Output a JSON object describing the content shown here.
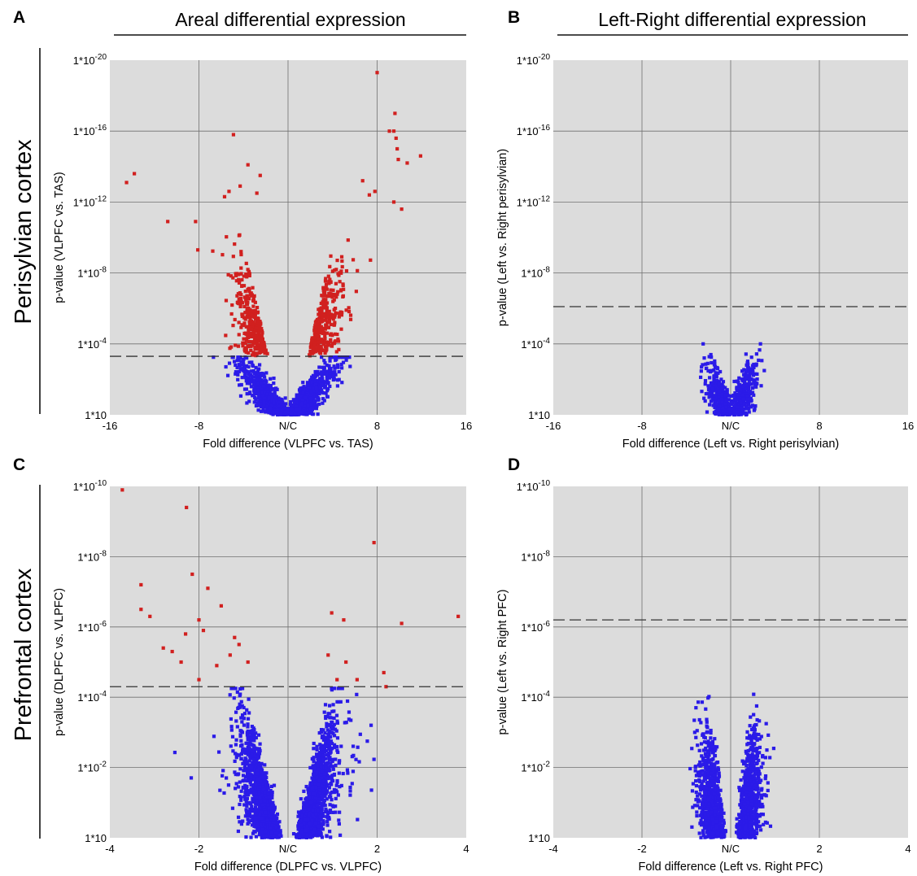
{
  "headers": {
    "left": "Areal differential expression",
    "right": "Left-Right differential expression"
  },
  "row_labels": {
    "top": "Perisylvian cortex",
    "bottom": "Prefrontal cortex"
  },
  "colors": {
    "plot_bg": "#dcdcdc",
    "grid": "#707070",
    "significant": "#d1201f",
    "nonsignificant": "#2b1be8",
    "threshold_line": "#333333"
  },
  "chart_data": [
    {
      "id": "A",
      "panel_label": "A",
      "type": "scatter",
      "xlabel": "Fold difference (VLPFC vs. TAS)",
      "ylabel": "p-value (VLPFC vs. TAS)",
      "x_ticks": [
        "-16",
        "-8",
        "N/C",
        "8",
        "16"
      ],
      "y_ticks": [
        {
          "base": "1*10",
          "exp": ""
        },
        {
          "base": "1*10",
          "exp": "-4"
        },
        {
          "base": "1*10",
          "exp": "-8"
        },
        {
          "base": "1*10",
          "exp": "-12"
        },
        {
          "base": "1*10",
          "exp": "-16"
        },
        {
          "base": "1*10",
          "exp": "-20"
        }
      ],
      "x_range": [
        -16,
        16
      ],
      "y_range_neglog10p": [
        0,
        20
      ],
      "threshold_neglog10p": 3.3,
      "grid": true,
      "significant_points": [
        [
          -14.5,
          13.1
        ],
        [
          -13.8,
          13.6
        ],
        [
          -10.8,
          10.9
        ],
        [
          -8.3,
          10.9
        ],
        [
          -8.1,
          9.3
        ],
        [
          -4.9,
          15.8
        ],
        [
          -4.3,
          12.9
        ],
        [
          -3.6,
          14.1
        ],
        [
          -2.8,
          12.5
        ],
        [
          -2.5,
          13.5
        ],
        [
          -5.7,
          12.3
        ],
        [
          -5.3,
          12.6
        ],
        [
          8.0,
          19.3
        ],
        [
          9.5,
          16.0
        ],
        [
          9.6,
          17.0
        ],
        [
          9.7,
          15.6
        ],
        [
          9.8,
          15.0
        ],
        [
          9.9,
          14.4
        ],
        [
          10.7,
          14.2
        ],
        [
          11.9,
          14.6
        ],
        [
          9.1,
          16.0
        ],
        [
          10.2,
          11.6
        ],
        [
          9.5,
          12.0
        ],
        [
          7.8,
          12.6
        ],
        [
          6.7,
          13.2
        ],
        [
          7.3,
          12.4
        ]
      ],
      "nonsignificant_count": 1300,
      "sig_band_count": 620
    },
    {
      "id": "B",
      "panel_label": "B",
      "type": "scatter",
      "xlabel": "Fold difference (Left vs. Right perisylvian)",
      "ylabel": "p-value (Left vs. Right perisylvian)",
      "x_ticks": [
        "-16",
        "-8",
        "N/C",
        "8",
        "16"
      ],
      "y_ticks": [
        {
          "base": "1*10",
          "exp": ""
        },
        {
          "base": "1*10",
          "exp": "-4"
        },
        {
          "base": "1*10",
          "exp": "-8"
        },
        {
          "base": "1*10",
          "exp": "-12"
        },
        {
          "base": "1*10",
          "exp": "-16"
        },
        {
          "base": "1*10",
          "exp": "-20"
        }
      ],
      "x_range": [
        -16,
        16
      ],
      "y_range_neglog10p": [
        0,
        20
      ],
      "threshold_neglog10p": 6.1,
      "grid": true,
      "significant_points": [],
      "nonsignificant_count": 700,
      "sig_band_count": 0
    },
    {
      "id": "C",
      "panel_label": "C",
      "type": "scatter",
      "xlabel": "Fold difference (DLPFC vs. VLPFC)",
      "ylabel": "p-value (DLPFC vs. VLPFC)",
      "x_ticks": [
        "-4",
        "-2",
        "N/C",
        "2",
        "4"
      ],
      "y_ticks": [
        {
          "base": "1*10",
          "exp": ""
        },
        {
          "base": "1*10",
          "exp": "-2"
        },
        {
          "base": "1*10",
          "exp": "-4"
        },
        {
          "base": "1*10",
          "exp": "-6"
        },
        {
          "base": "1*10",
          "exp": "-8"
        },
        {
          "base": "1*10",
          "exp": "-10"
        }
      ],
      "x_range": [
        -4,
        4
      ],
      "y_range_neglog10p": [
        0,
        10
      ],
      "threshold_neglog10p": 4.3,
      "grid": true,
      "significant_points": [
        [
          -3.72,
          9.9
        ],
        [
          -2.28,
          9.4
        ],
        [
          1.93,
          8.4
        ],
        [
          -2.15,
          7.5
        ],
        [
          -3.3,
          7.2
        ],
        [
          -1.8,
          7.1
        ],
        [
          -3.3,
          6.5
        ],
        [
          -3.1,
          6.3
        ],
        [
          -2.0,
          6.2
        ],
        [
          -1.5,
          6.6
        ],
        [
          0.98,
          6.4
        ],
        [
          1.25,
          6.2
        ],
        [
          2.55,
          6.1
        ],
        [
          3.82,
          6.3
        ],
        [
          -1.9,
          5.9
        ],
        [
          -2.3,
          5.8
        ],
        [
          -1.2,
          5.7
        ],
        [
          -1.1,
          5.5
        ],
        [
          -2.6,
          5.3
        ],
        [
          -1.3,
          5.2
        ],
        [
          0.9,
          5.2
        ],
        [
          1.3,
          5.0
        ],
        [
          2.15,
          4.7
        ],
        [
          -2.8,
          5.4
        ],
        [
          -2.4,
          5.0
        ],
        [
          -1.6,
          4.9
        ],
        [
          -0.9,
          5.0
        ],
        [
          -2.0,
          4.5
        ],
        [
          1.1,
          4.5
        ],
        [
          1.55,
          4.5
        ],
        [
          2.2,
          4.3
        ]
      ],
      "nonsignificant_count": 2400,
      "sig_band_count": 0
    },
    {
      "id": "D",
      "panel_label": "D",
      "type": "scatter",
      "xlabel": "Fold difference (Left vs. Right PFC)",
      "ylabel": "p-value (Left vs. Right PFC)",
      "x_ticks": [
        "-4",
        "-2",
        "N/C",
        "2",
        "4"
      ],
      "y_ticks": [
        {
          "base": "1*10",
          "exp": ""
        },
        {
          "base": "1*10",
          "exp": "-2"
        },
        {
          "base": "1*10",
          "exp": "-4"
        },
        {
          "base": "1*10",
          "exp": "-6"
        },
        {
          "base": "1*10",
          "exp": "-8"
        },
        {
          "base": "1*10",
          "exp": "-10"
        }
      ],
      "x_range": [
        -4,
        4
      ],
      "y_range_neglog10p": [
        0,
        10
      ],
      "threshold_neglog10p": 6.2,
      "grid": true,
      "significant_points": [],
      "nonsignificant_count": 1500,
      "sig_band_count": 0
    }
  ]
}
